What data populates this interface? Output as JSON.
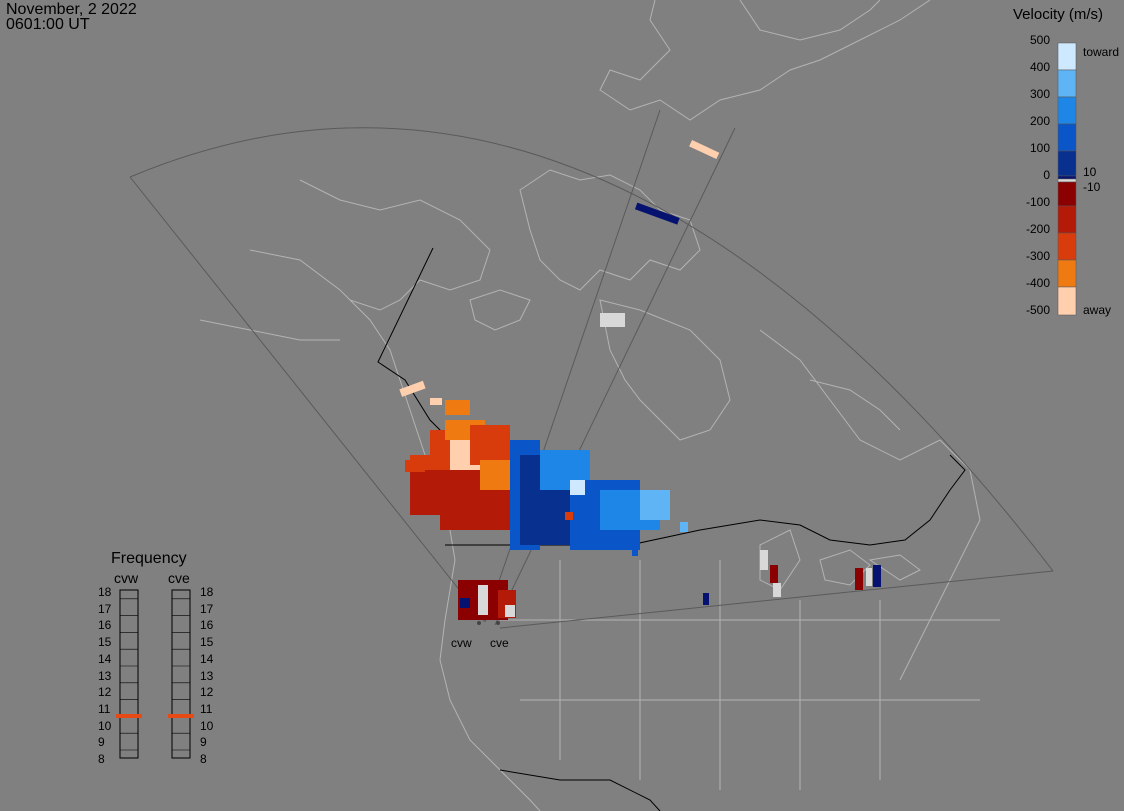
{
  "header": {
    "date": "November, 2 2022",
    "time": "0601:00 UT"
  },
  "colorbar": {
    "title": "Velocity (m/s)",
    "ticks": [
      "500",
      "400",
      "300",
      "200",
      "100",
      "0",
      "-100",
      "-200",
      "-300",
      "-400",
      "-500"
    ],
    "near_zero_pos": "10",
    "near_zero_neg": "-10",
    "toward_label": "toward",
    "away_label": "away",
    "colors": [
      "#cde8ff",
      "#5fb4f5",
      "#1e86e6",
      "#0a56c8",
      "#08308f",
      "#061270",
      "#d8d8d8",
      "#8b0000",
      "#b41a08",
      "#d83c0c",
      "#f07a12",
      "#ffcfae"
    ]
  },
  "frequency": {
    "title": "Frequency",
    "radars": [
      "cvw",
      "cve"
    ],
    "scale": [
      "18",
      "17",
      "16",
      "15",
      "14",
      "13",
      "12",
      "11",
      "10",
      "9",
      "8"
    ],
    "current_mhz": [
      10.8,
      10.8
    ],
    "marker_color": "#e84a16"
  },
  "radar_sites": [
    "cvw",
    "cve"
  ],
  "map": {
    "background": "#808080",
    "border_color": "#000000",
    "coast_color": "#b3b3b3",
    "fov_color": "#5a5a5a"
  }
}
